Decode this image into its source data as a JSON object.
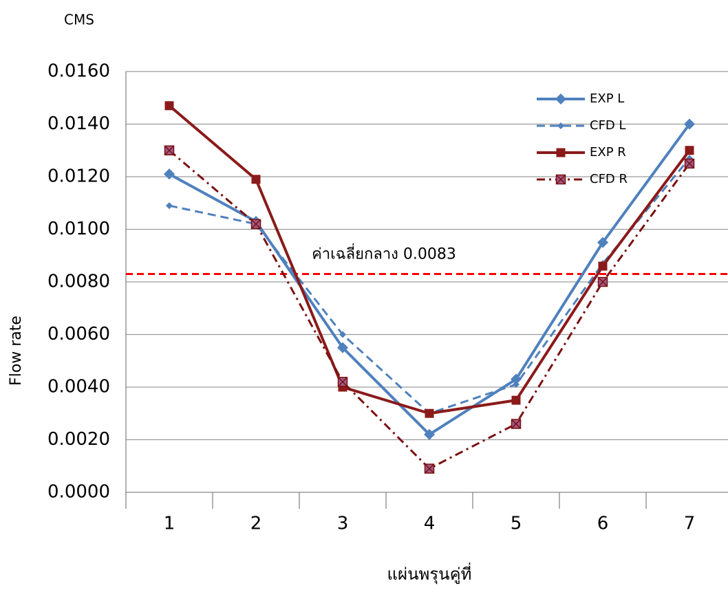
{
  "chart_data": {
    "type": "line",
    "unit_label": "CMS",
    "y_label": "Flow rate",
    "x_label": "แผ่นพรุนคู่ที่",
    "categories": [
      "1",
      "2",
      "3",
      "4",
      "5",
      "6",
      "7"
    ],
    "series": [
      {
        "name": "EXP L",
        "color": "#4f81bd",
        "dash": "solid",
        "marker": "diamond",
        "values": [
          0.0121,
          0.0103,
          0.0055,
          0.0022,
          0.0043,
          0.0095,
          0.014
        ]
      },
      {
        "name": "CFD L",
        "color": "#4f81bd",
        "dash": "dash",
        "marker": "small-diamond",
        "values": [
          0.0109,
          0.0102,
          0.006,
          0.003,
          0.0041,
          0.0087,
          0.0127
        ]
      },
      {
        "name": "EXP R",
        "color": "#8b1a1a",
        "dash": "solid",
        "marker": "square",
        "values": [
          0.0147,
          0.0119,
          0.004,
          0.003,
          0.0035,
          0.0086,
          0.013
        ]
      },
      {
        "name": "CFD R",
        "color": "#7b1010",
        "dash": "dashdot",
        "marker": "square-x",
        "values": [
          0.013,
          0.0102,
          0.0042,
          0.0009,
          0.0026,
          0.008,
          0.0125
        ]
      }
    ],
    "reference_line": {
      "label": "ค่าเฉลี่ยกลาง 0.0083",
      "value": 0.0083,
      "color": "#ff0000"
    },
    "ylim": [
      0,
      0.016
    ],
    "yticks": [
      {
        "value": 0,
        "label": "0.0000"
      },
      {
        "value": 0.002,
        "label": "0.0020"
      },
      {
        "value": 0.004,
        "label": "0.0040"
      },
      {
        "value": 0.006,
        "label": "0.0060"
      },
      {
        "value": 0.008,
        "label": "0.0080"
      },
      {
        "value": 0.01,
        "label": "0.0100"
      },
      {
        "value": 0.012,
        "label": "0.0120"
      },
      {
        "value": 0.014,
        "label": "0.0140"
      },
      {
        "value": 0.016,
        "label": "0.0160"
      }
    ],
    "grid": true,
    "legend": "top-right"
  }
}
